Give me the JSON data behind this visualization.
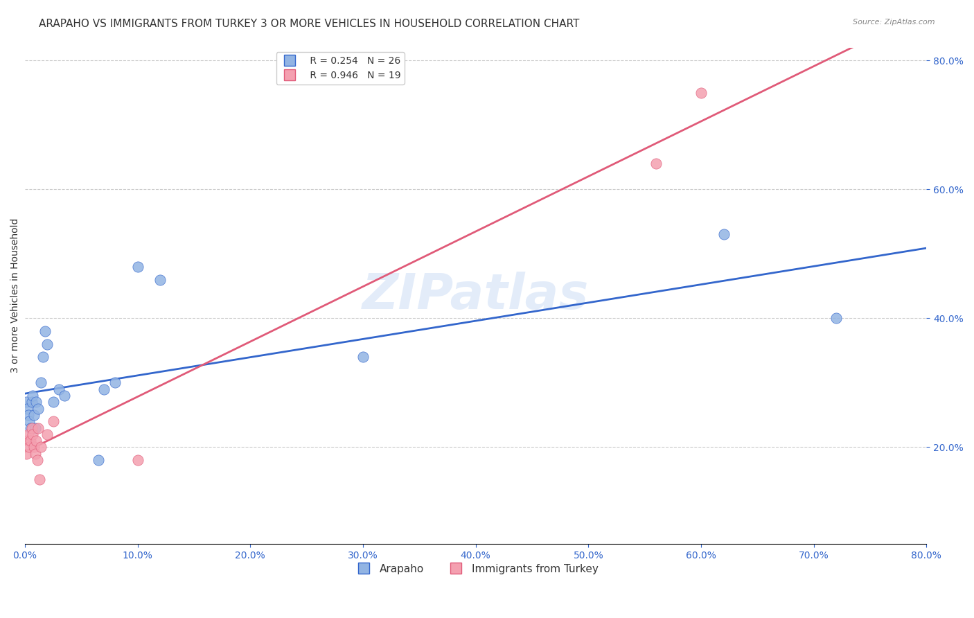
{
  "title": "ARAPAHO VS IMMIGRANTS FROM TURKEY 3 OR MORE VEHICLES IN HOUSEHOLD CORRELATION CHART",
  "source": "Source: ZipAtlas.com",
  "xlabel": "",
  "ylabel": "3 or more Vehicles in Household",
  "blue_label": "Arapaho",
  "pink_label": "Immigrants from Turkey",
  "blue_R": 0.254,
  "blue_N": 26,
  "pink_R": 0.946,
  "pink_N": 19,
  "xlim": [
    0.0,
    0.8
  ],
  "ylim": [
    0.05,
    0.82
  ],
  "blue_color": "#92b4e3",
  "pink_color": "#f4a0b0",
  "blue_line_color": "#3366cc",
  "pink_line_color": "#e05a78",
  "blue_x": [
    0.001,
    0.002,
    0.003,
    0.004,
    0.005,
    0.006,
    0.007,
    0.008,
    0.009,
    0.01,
    0.012,
    0.014,
    0.016,
    0.018,
    0.02,
    0.025,
    0.03,
    0.035,
    0.065,
    0.07,
    0.08,
    0.1,
    0.12,
    0.3,
    0.62,
    0.72
  ],
  "blue_y": [
    0.27,
    0.26,
    0.25,
    0.24,
    0.23,
    0.27,
    0.28,
    0.25,
    0.23,
    0.27,
    0.26,
    0.3,
    0.34,
    0.38,
    0.36,
    0.27,
    0.29,
    0.28,
    0.18,
    0.29,
    0.3,
    0.48,
    0.46,
    0.34,
    0.53,
    0.4
  ],
  "pink_x": [
    0.001,
    0.002,
    0.003,
    0.004,
    0.005,
    0.006,
    0.007,
    0.008,
    0.009,
    0.01,
    0.011,
    0.012,
    0.013,
    0.014,
    0.02,
    0.025,
    0.1,
    0.56,
    0.6
  ],
  "pink_y": [
    0.19,
    0.21,
    0.22,
    0.2,
    0.21,
    0.23,
    0.22,
    0.2,
    0.19,
    0.21,
    0.18,
    0.23,
    0.15,
    0.2,
    0.22,
    0.24,
    0.18,
    0.64,
    0.75
  ],
  "watermark": "ZIPatlas",
  "background_color": "#ffffff",
  "grid_color": "#cccccc",
  "title_fontsize": 11,
  "axis_label_fontsize": 10,
  "tick_fontsize": 9,
  "legend_fontsize": 10
}
